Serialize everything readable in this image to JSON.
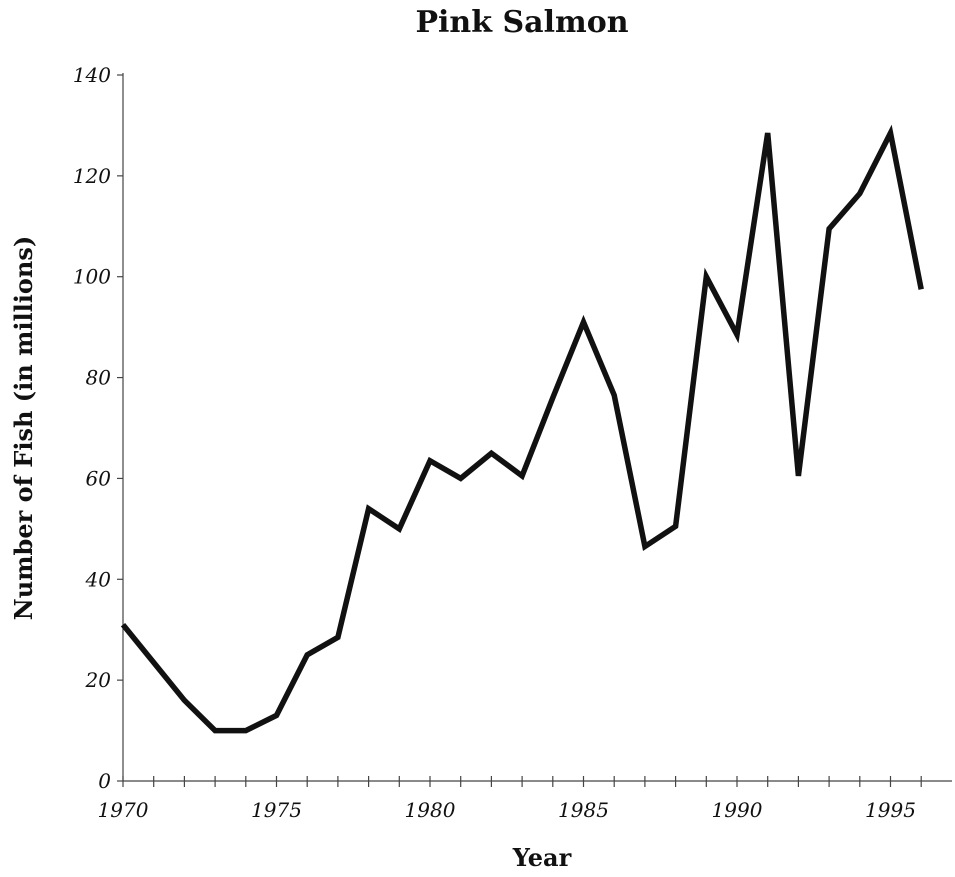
{
  "chart_data": {
    "type": "line",
    "title": "Pink Salmon",
    "xlabel": "Year",
    "ylabel": "Number of Fish (in millions)",
    "xlim": [
      1970,
      1996
    ],
    "ylim": [
      0,
      140
    ],
    "x_ticks_labeled": [
      1970,
      1975,
      1980,
      1985,
      1990,
      1995
    ],
    "x_minor_tick_step": 1,
    "y_ticks": [
      0,
      20,
      40,
      60,
      80,
      100,
      120,
      140
    ],
    "grid": false,
    "legend": "none",
    "line_color": "#111111",
    "x": [
      1970,
      1971,
      1972,
      1973,
      1974,
      1975,
      1976,
      1977,
      1978,
      1979,
      1980,
      1981,
      1982,
      1983,
      1984,
      1985,
      1986,
      1987,
      1988,
      1989,
      1990,
      1991,
      1992,
      1993,
      1994,
      1995,
      1996
    ],
    "series": [
      {
        "values": [
          31,
          23.5,
          16,
          10,
          10,
          13,
          25,
          28.5,
          54,
          50,
          63.5,
          60,
          65,
          60.5,
          76,
          91,
          76.5,
          46.5,
          50.5,
          100,
          88.5,
          128.5,
          60.5,
          109.5,
          116.5,
          128.5,
          97.5
        ]
      }
    ]
  }
}
